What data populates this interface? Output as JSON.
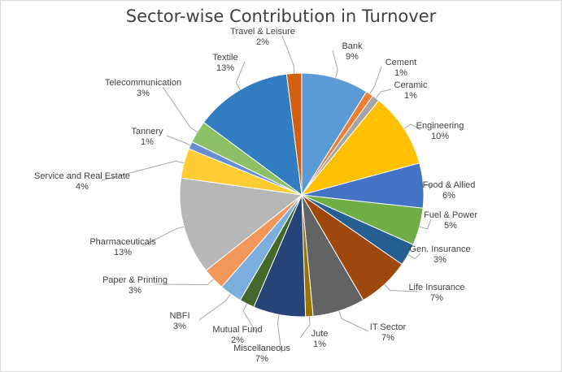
{
  "chart_data": {
    "type": "pie",
    "title": "Sector-wise Contribution in Turnover",
    "slices": [
      {
        "label": "Bank",
        "value": 9,
        "value_label": "9%",
        "color": "#5b9bd5"
      },
      {
        "label": "Cement",
        "value": 1,
        "value_label": "1%",
        "color": "#ed7d31"
      },
      {
        "label": "Ceramic",
        "value": 1,
        "value_label": "1%",
        "color": "#a5a5a5"
      },
      {
        "label": "Engineering",
        "value": 10,
        "value_label": "10%",
        "color": "#ffc000"
      },
      {
        "label": "Food & Allied",
        "value": 6,
        "value_label": "6%",
        "color": "#4472c4"
      },
      {
        "label": "Fuel & Power",
        "value": 5,
        "value_label": "5%",
        "color": "#70ad47"
      },
      {
        "label": "Gen. Insurance",
        "value": 3,
        "value_label": "3%",
        "color": "#255e91"
      },
      {
        "label": "Life Insurance",
        "value": 7,
        "value_label": "7%",
        "color": "#9e480e"
      },
      {
        "label": "IT Sector",
        "value": 7,
        "value_label": "7%",
        "color": "#636363"
      },
      {
        "label": "Jute",
        "value": 1,
        "value_label": "1%",
        "color": "#997300"
      },
      {
        "label": "Miscellaneous",
        "value": 7,
        "value_label": "7%",
        "color": "#264478"
      },
      {
        "label": "Mutual Fund",
        "value": 2,
        "value_label": "2%",
        "color": "#43682b"
      },
      {
        "label": "NBFI",
        "value": 3,
        "value_label": "3%",
        "color": "#7cafdd"
      },
      {
        "label": "Paper & Printing",
        "value": 3,
        "value_label": "3%",
        "color": "#f1975a"
      },
      {
        "label": "Pharmaceuticals",
        "value": 13,
        "value_label": "13%",
        "color": "#b7b7b7"
      },
      {
        "label": "Service and Real Estate",
        "value": 4,
        "value_label": "4%",
        "color": "#ffcd33"
      },
      {
        "label": "Tannery",
        "value": 1,
        "value_label": "1%",
        "color": "#698ed0"
      },
      {
        "label": "Telecommunication",
        "value": 3,
        "value_label": "3%",
        "color": "#8cc168"
      },
      {
        "label": "Textile",
        "value": 13,
        "value_label": "13%",
        "color": "#327dc2"
      },
      {
        "label": "Travel & Leisure",
        "value": 2,
        "value_label": "2%",
        "color": "#d26012"
      }
    ]
  }
}
